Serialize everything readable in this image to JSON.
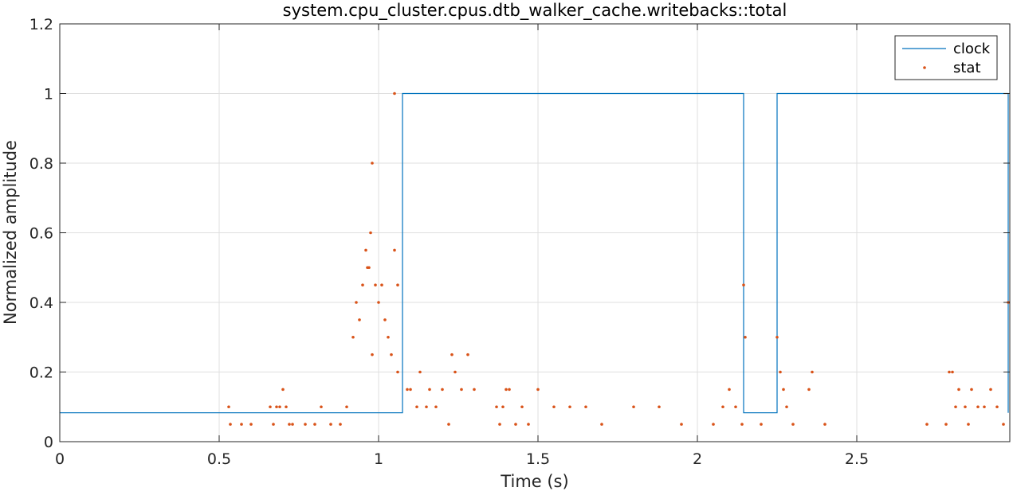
{
  "chart_data": {
    "type": "line",
    "title": "system.cpu_cluster.cpus.dtb_walker_cache.writebacks::total",
    "xlabel": "Time (s)",
    "ylabel": "Normalized amplitude",
    "xlim": [
      0,
      2.98
    ],
    "ylim": [
      0,
      1.2
    ],
    "xticks": [
      0,
      0.5,
      1,
      1.5,
      2,
      2.5
    ],
    "xtick_labels": [
      "0",
      "0.5",
      "1",
      "1.5",
      "2",
      "2.5"
    ],
    "yticks": [
      0,
      0.2,
      0.4,
      0.6,
      0.8,
      1,
      1.2
    ],
    "ytick_labels": [
      "0",
      "0.2",
      "0.4",
      "0.6",
      "0.8",
      "1",
      "1.2"
    ],
    "grid": true,
    "legend_position": "top-right",
    "colors": {
      "clock": "#0072BD",
      "stat": "#D95319",
      "axes": "#262626",
      "grid": "#DFDFDF"
    },
    "series": [
      {
        "name": "clock",
        "style": "step",
        "x": [
          0,
          1.075,
          1.075,
          2.145,
          2.145,
          2.25,
          2.25,
          2.975,
          2.975
        ],
        "y": [
          0.083,
          0.083,
          1,
          1,
          0.083,
          0.083,
          1,
          1,
          0.083
        ]
      },
      {
        "name": "stat",
        "style": "markers",
        "x": [
          0.53,
          0.535,
          0.57,
          0.6,
          0.66,
          0.67,
          0.68,
          0.69,
          0.7,
          0.71,
          0.72,
          0.73,
          0.77,
          0.8,
          0.82,
          0.85,
          0.88,
          0.9,
          0.92,
          0.93,
          0.94,
          0.95,
          0.96,
          0.97,
          0.975,
          0.98,
          0.99,
          1.0,
          1.01,
          1.02,
          1.03,
          1.04,
          1.05,
          1.06,
          0.965,
          0.98,
          1.05,
          1.06,
          1.09,
          1.1,
          1.12,
          1.13,
          1.15,
          1.16,
          1.18,
          1.2,
          1.22,
          1.23,
          1.24,
          1.26,
          1.28,
          1.3,
          1.37,
          1.38,
          1.39,
          1.4,
          1.41,
          1.43,
          1.45,
          1.47,
          1.5,
          1.55,
          1.6,
          1.65,
          1.7,
          1.8,
          1.88,
          1.95,
          2.05,
          2.08,
          2.1,
          2.12,
          2.14,
          2.145,
          2.15,
          2.2,
          2.25,
          2.26,
          2.27,
          2.28,
          2.3,
          2.35,
          2.36,
          2.4,
          2.72,
          2.78,
          2.79,
          2.8,
          2.81,
          2.82,
          2.84,
          2.85,
          2.86,
          2.88,
          2.9,
          2.92,
          2.94,
          2.96,
          2.975
        ],
        "y": [
          0.1,
          0.05,
          0.05,
          0.05,
          0.1,
          0.05,
          0.1,
          0.1,
          0.15,
          0.1,
          0.05,
          0.05,
          0.05,
          0.05,
          0.1,
          0.05,
          0.05,
          0.1,
          0.3,
          0.4,
          0.35,
          0.45,
          0.55,
          0.5,
          0.6,
          0.8,
          0.45,
          0.4,
          0.45,
          0.35,
          0.3,
          0.25,
          0.55,
          0.45,
          0.5,
          0.25,
          1.0,
          0.2,
          0.15,
          0.15,
          0.1,
          0.2,
          0.1,
          0.15,
          0.1,
          0.15,
          0.05,
          0.25,
          0.2,
          0.15,
          0.25,
          0.15,
          0.1,
          0.05,
          0.1,
          0.15,
          0.15,
          0.05,
          0.1,
          0.05,
          0.15,
          0.1,
          0.1,
          0.1,
          0.05,
          0.1,
          0.1,
          0.05,
          0.05,
          0.1,
          0.15,
          0.1,
          0.05,
          0.45,
          0.3,
          0.05,
          0.3,
          0.2,
          0.15,
          0.1,
          0.05,
          0.15,
          0.2,
          0.05,
          0.05,
          0.05,
          0.2,
          0.2,
          0.1,
          0.15,
          0.1,
          0.05,
          0.15,
          0.1,
          0.1,
          0.15,
          0.1,
          0.05,
          0.4
        ]
      }
    ]
  }
}
